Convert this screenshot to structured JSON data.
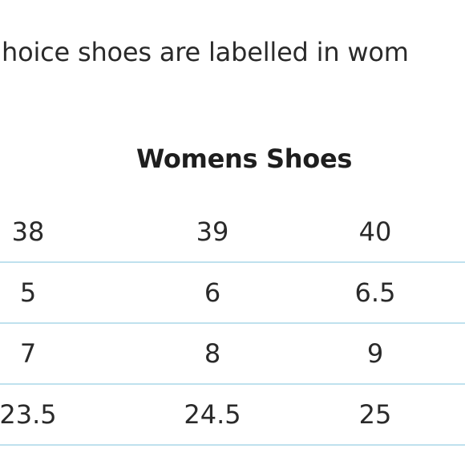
{
  "intro_text": "hoice shoes are labelled in wom",
  "table": {
    "title": "Womens Shoes",
    "rows": [
      [
        "38",
        "39",
        "40"
      ],
      [
        "5",
        "6",
        "6.5"
      ],
      [
        "7",
        "8",
        "9"
      ],
      [
        "23.5",
        "24.5",
        "25"
      ]
    ]
  },
  "colors": {
    "row_border": "#bfe1ee",
    "text": "#2a2a2a"
  }
}
